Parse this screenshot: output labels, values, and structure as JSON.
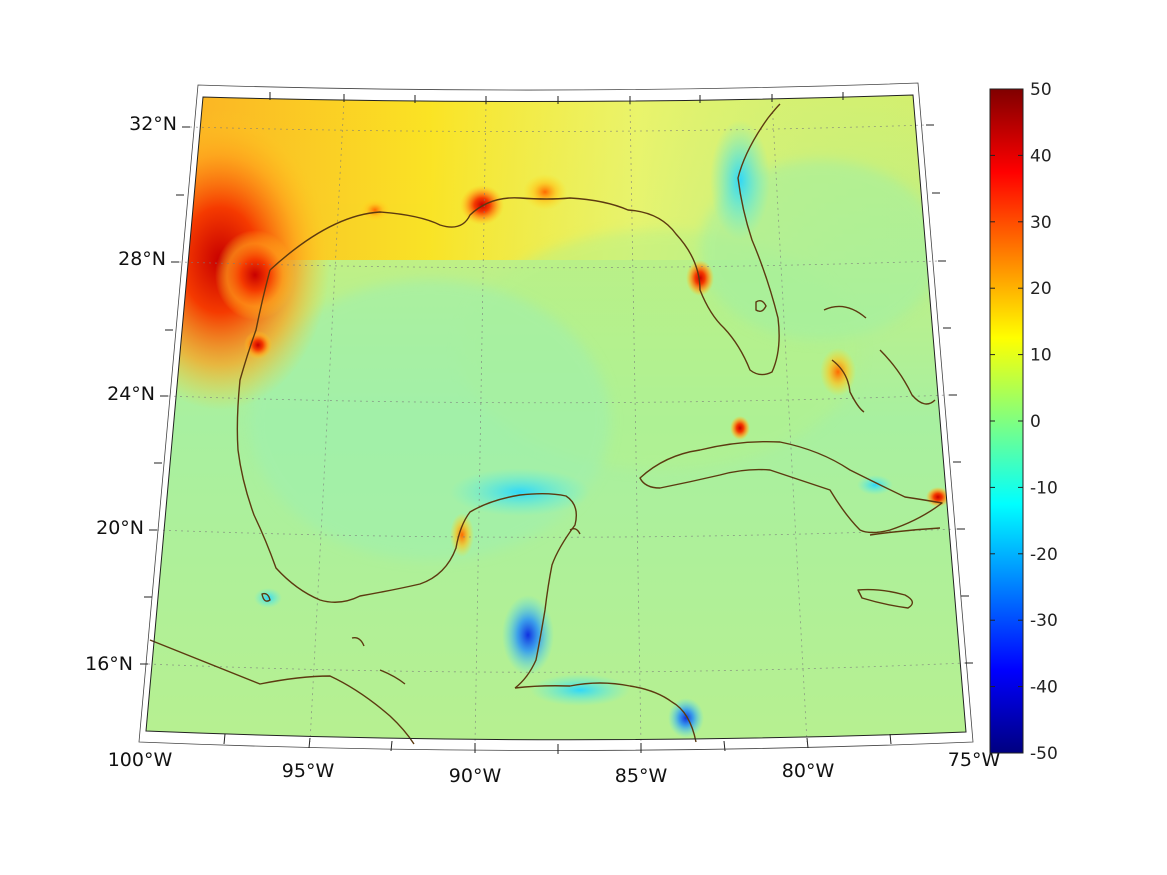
{
  "map": {
    "lat_labels": [
      "32°N",
      "28°N",
      "24°N",
      "20°N",
      "16°N"
    ],
    "lat_values": [
      32,
      28,
      24,
      20,
      16
    ],
    "lon_labels": [
      "100°W",
      "95°W",
      "90°W",
      "85°W",
      "80°W",
      "75°W"
    ],
    "lon_values": [
      -100,
      -95,
      -90,
      -85,
      -80,
      -75
    ],
    "lat_range": [
      14,
      33
    ],
    "lon_range": [
      -100,
      -75
    ],
    "grid": true,
    "coastline_color": "#5c3a10"
  },
  "colorbar": {
    "ticks": [
      "50",
      "40",
      "30",
      "20",
      "10",
      "0",
      "-10",
      "-20",
      "-30",
      "-40",
      "-50"
    ],
    "range": [
      -50,
      50
    ],
    "colormap": "jet",
    "position": "right"
  }
}
